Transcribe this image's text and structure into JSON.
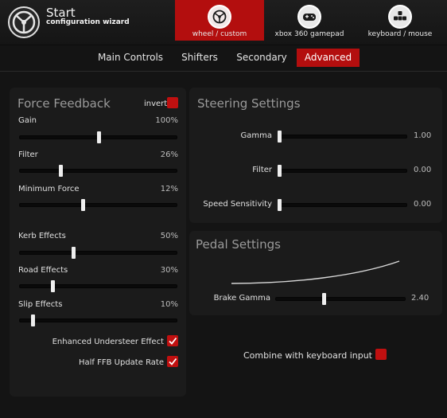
{
  "header": {
    "title": "Start",
    "subtitle": "configuration wizard",
    "devices": [
      {
        "label": "wheel / custom",
        "icon": "steering-wheel-icon",
        "active": true
      },
      {
        "label": "xbox 360 gamepad",
        "icon": "gamepad-icon",
        "active": false
      },
      {
        "label": "keyboard / mouse",
        "icon": "keyboard-icon",
        "active": false
      }
    ]
  },
  "tabs": [
    {
      "label": "Main Controls",
      "active": false
    },
    {
      "label": "Shifters",
      "active": false
    },
    {
      "label": "Secondary",
      "active": false
    },
    {
      "label": "Advanced",
      "active": true
    }
  ],
  "force_feedback": {
    "title": "Force Feedback",
    "invert_label": "invert",
    "invert_checked": false,
    "sliders": [
      {
        "label": "Gain",
        "value": "100%",
        "level": 0.5
      },
      {
        "label": "Filter",
        "value": "26%",
        "level": 0.26
      },
      {
        "label": "Minimum Force",
        "value": "12%",
        "level": 0.4
      },
      {
        "label": "Kerb Effects",
        "value": "50%",
        "level": 0.34
      },
      {
        "label": "Road Effects",
        "value": "30%",
        "level": 0.21
      },
      {
        "label": "Slip Effects",
        "value": "10%",
        "level": 0.08
      }
    ],
    "checks": [
      {
        "label": "Enhanced Understeer Effect",
        "checked": true
      },
      {
        "label": "Half FFB Update Rate",
        "checked": true
      }
    ]
  },
  "steering": {
    "title": "Steering Settings",
    "sliders": [
      {
        "label": "Gamma",
        "value": "1.00",
        "level": 0.0
      },
      {
        "label": "Filter",
        "value": "0.00",
        "level": 0.0
      },
      {
        "label": "Speed Sensitivity",
        "value": "0.00",
        "level": 0.0
      }
    ]
  },
  "pedal": {
    "title": "Pedal Settings",
    "sliders": [
      {
        "label": "Brake Gamma",
        "value": "2.40",
        "level": 0.37
      }
    ]
  },
  "combine": {
    "label": "Combine with keyboard input",
    "checked": false
  },
  "colors": {
    "accent": "#b30e0e",
    "background": "#141414",
    "panel": "#1b1b1b"
  }
}
